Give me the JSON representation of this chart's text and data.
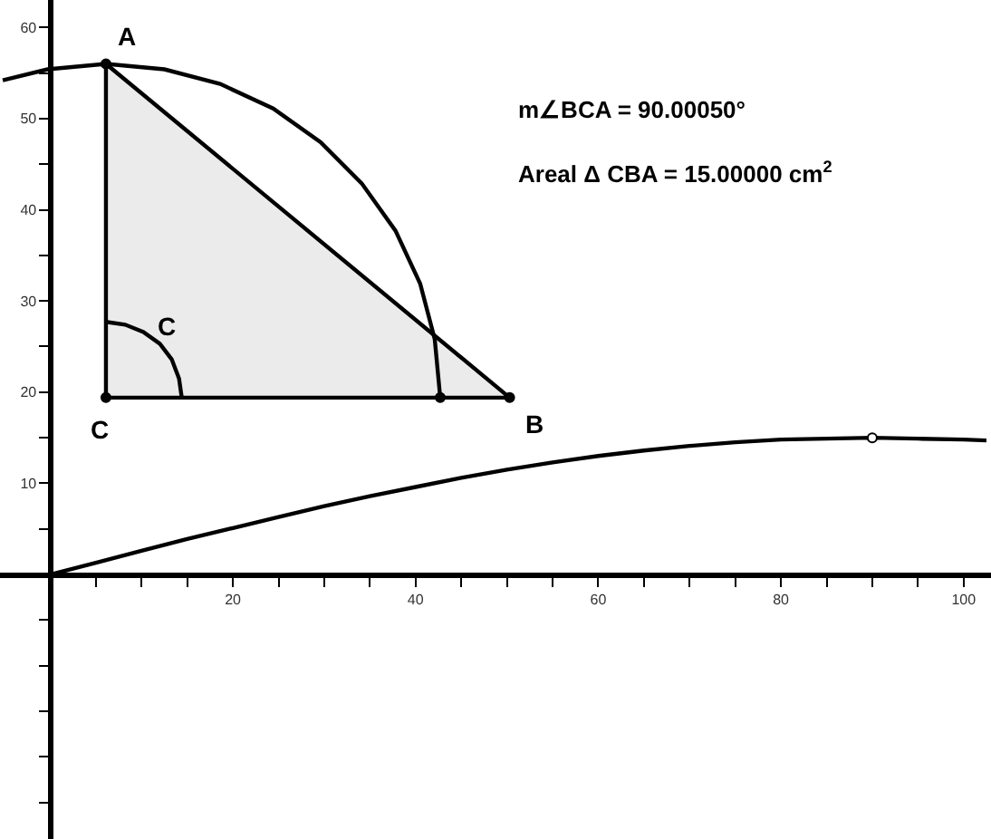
{
  "chart_data": {
    "type": "line",
    "xlim": [
      -5.5,
      103
    ],
    "ylim": [
      -29,
      63
    ],
    "xticks": [
      {
        "value": 5,
        "label": null
      },
      {
        "value": 10,
        "label": null
      },
      {
        "value": 15,
        "label": null
      },
      20,
      {
        "value": 25,
        "label": null
      },
      {
        "value": 30,
        "label": null
      },
      {
        "value": 35,
        "label": null
      },
      40,
      {
        "value": 45,
        "label": null
      },
      {
        "value": 50,
        "label": null
      },
      {
        "value": 55,
        "label": null
      },
      60,
      {
        "value": 65,
        "label": null
      },
      {
        "value": 70,
        "label": null
      },
      {
        "value": 75,
        "label": null
      },
      80,
      {
        "value": 85,
        "label": null
      },
      {
        "value": 90,
        "label": null
      },
      {
        "value": 95,
        "label": null
      },
      100
    ],
    "yticks": [
      {
        "value": -25,
        "label": null
      },
      {
        "value": -20,
        "label": null
      },
      {
        "value": -15,
        "label": null
      },
      {
        "value": -10,
        "label": null
      },
      {
        "value": -5,
        "label": null
      },
      {
        "value": 5,
        "label": null
      },
      10,
      {
        "value": 15,
        "label": null
      },
      20,
      {
        "value": 25,
        "label": null
      },
      30,
      {
        "value": 35,
        "label": null
      },
      40,
      {
        "value": 45,
        "label": null
      },
      50,
      {
        "value": 55,
        "label": null
      },
      60
    ],
    "legend": false,
    "series": [
      {
        "color": "#000000",
        "x": [
          0,
          5,
          10,
          15,
          20,
          25,
          30,
          35,
          40,
          45,
          50,
          55,
          60,
          65,
          70,
          75,
          80,
          85,
          90,
          95,
          100,
          102.5
        ],
        "values": [
          0,
          1.3,
          2.6,
          3.9,
          5.1,
          6.3,
          7.5,
          8.6,
          9.6,
          10.6,
          11.5,
          12.3,
          13.0,
          13.6,
          14.1,
          14.5,
          14.8,
          14.9,
          15.0,
          14.9,
          14.8,
          14.7
        ]
      },
      {
        "type": "area",
        "color": "#ebebeb",
        "x": [
          6.1,
          6.1,
          50.3,
          6.1
        ],
        "values": [
          56.0,
          19.4,
          19.4,
          56.0
        ]
      },
      {
        "color": "#030303",
        "x": [
          42.7,
          42.1,
          40.5,
          37.8,
          34.1,
          29.6,
          24.4,
          18.6,
          12.5,
          6.1,
          -0.3,
          -5.2
        ],
        "values": [
          19.4,
          25.8,
          31.9,
          37.7,
          42.9,
          47.4,
          51.1,
          53.8,
          55.4,
          56.0,
          55.4,
          54.2
        ]
      },
      {
        "color": "#040404",
        "x": [
          14.4,
          14.1,
          13.3,
          12.0,
          10.2,
          8.2,
          6.1
        ],
        "values": [
          19.4,
          21.5,
          23.6,
          25.3,
          26.6,
          27.4,
          27.7
        ]
      },
      {
        "type": "scatter",
        "color": "#050505",
        "x": [
          6.1,
          6.1,
          50.3,
          42.7
        ],
        "values": [
          56.0,
          19.4,
          19.4,
          19.4
        ]
      },
      {
        "type": "scatter",
        "color": "#ffffff",
        "x": [
          90
        ],
        "values": [
          15.0
        ]
      }
    ],
    "annotations": [
      "A",
      "C",
      "B",
      "C",
      "m∠BCA = 90.00050°",
      "Areal Δ CBA = 15.00000 cm$^{2}$"
    ]
  }
}
